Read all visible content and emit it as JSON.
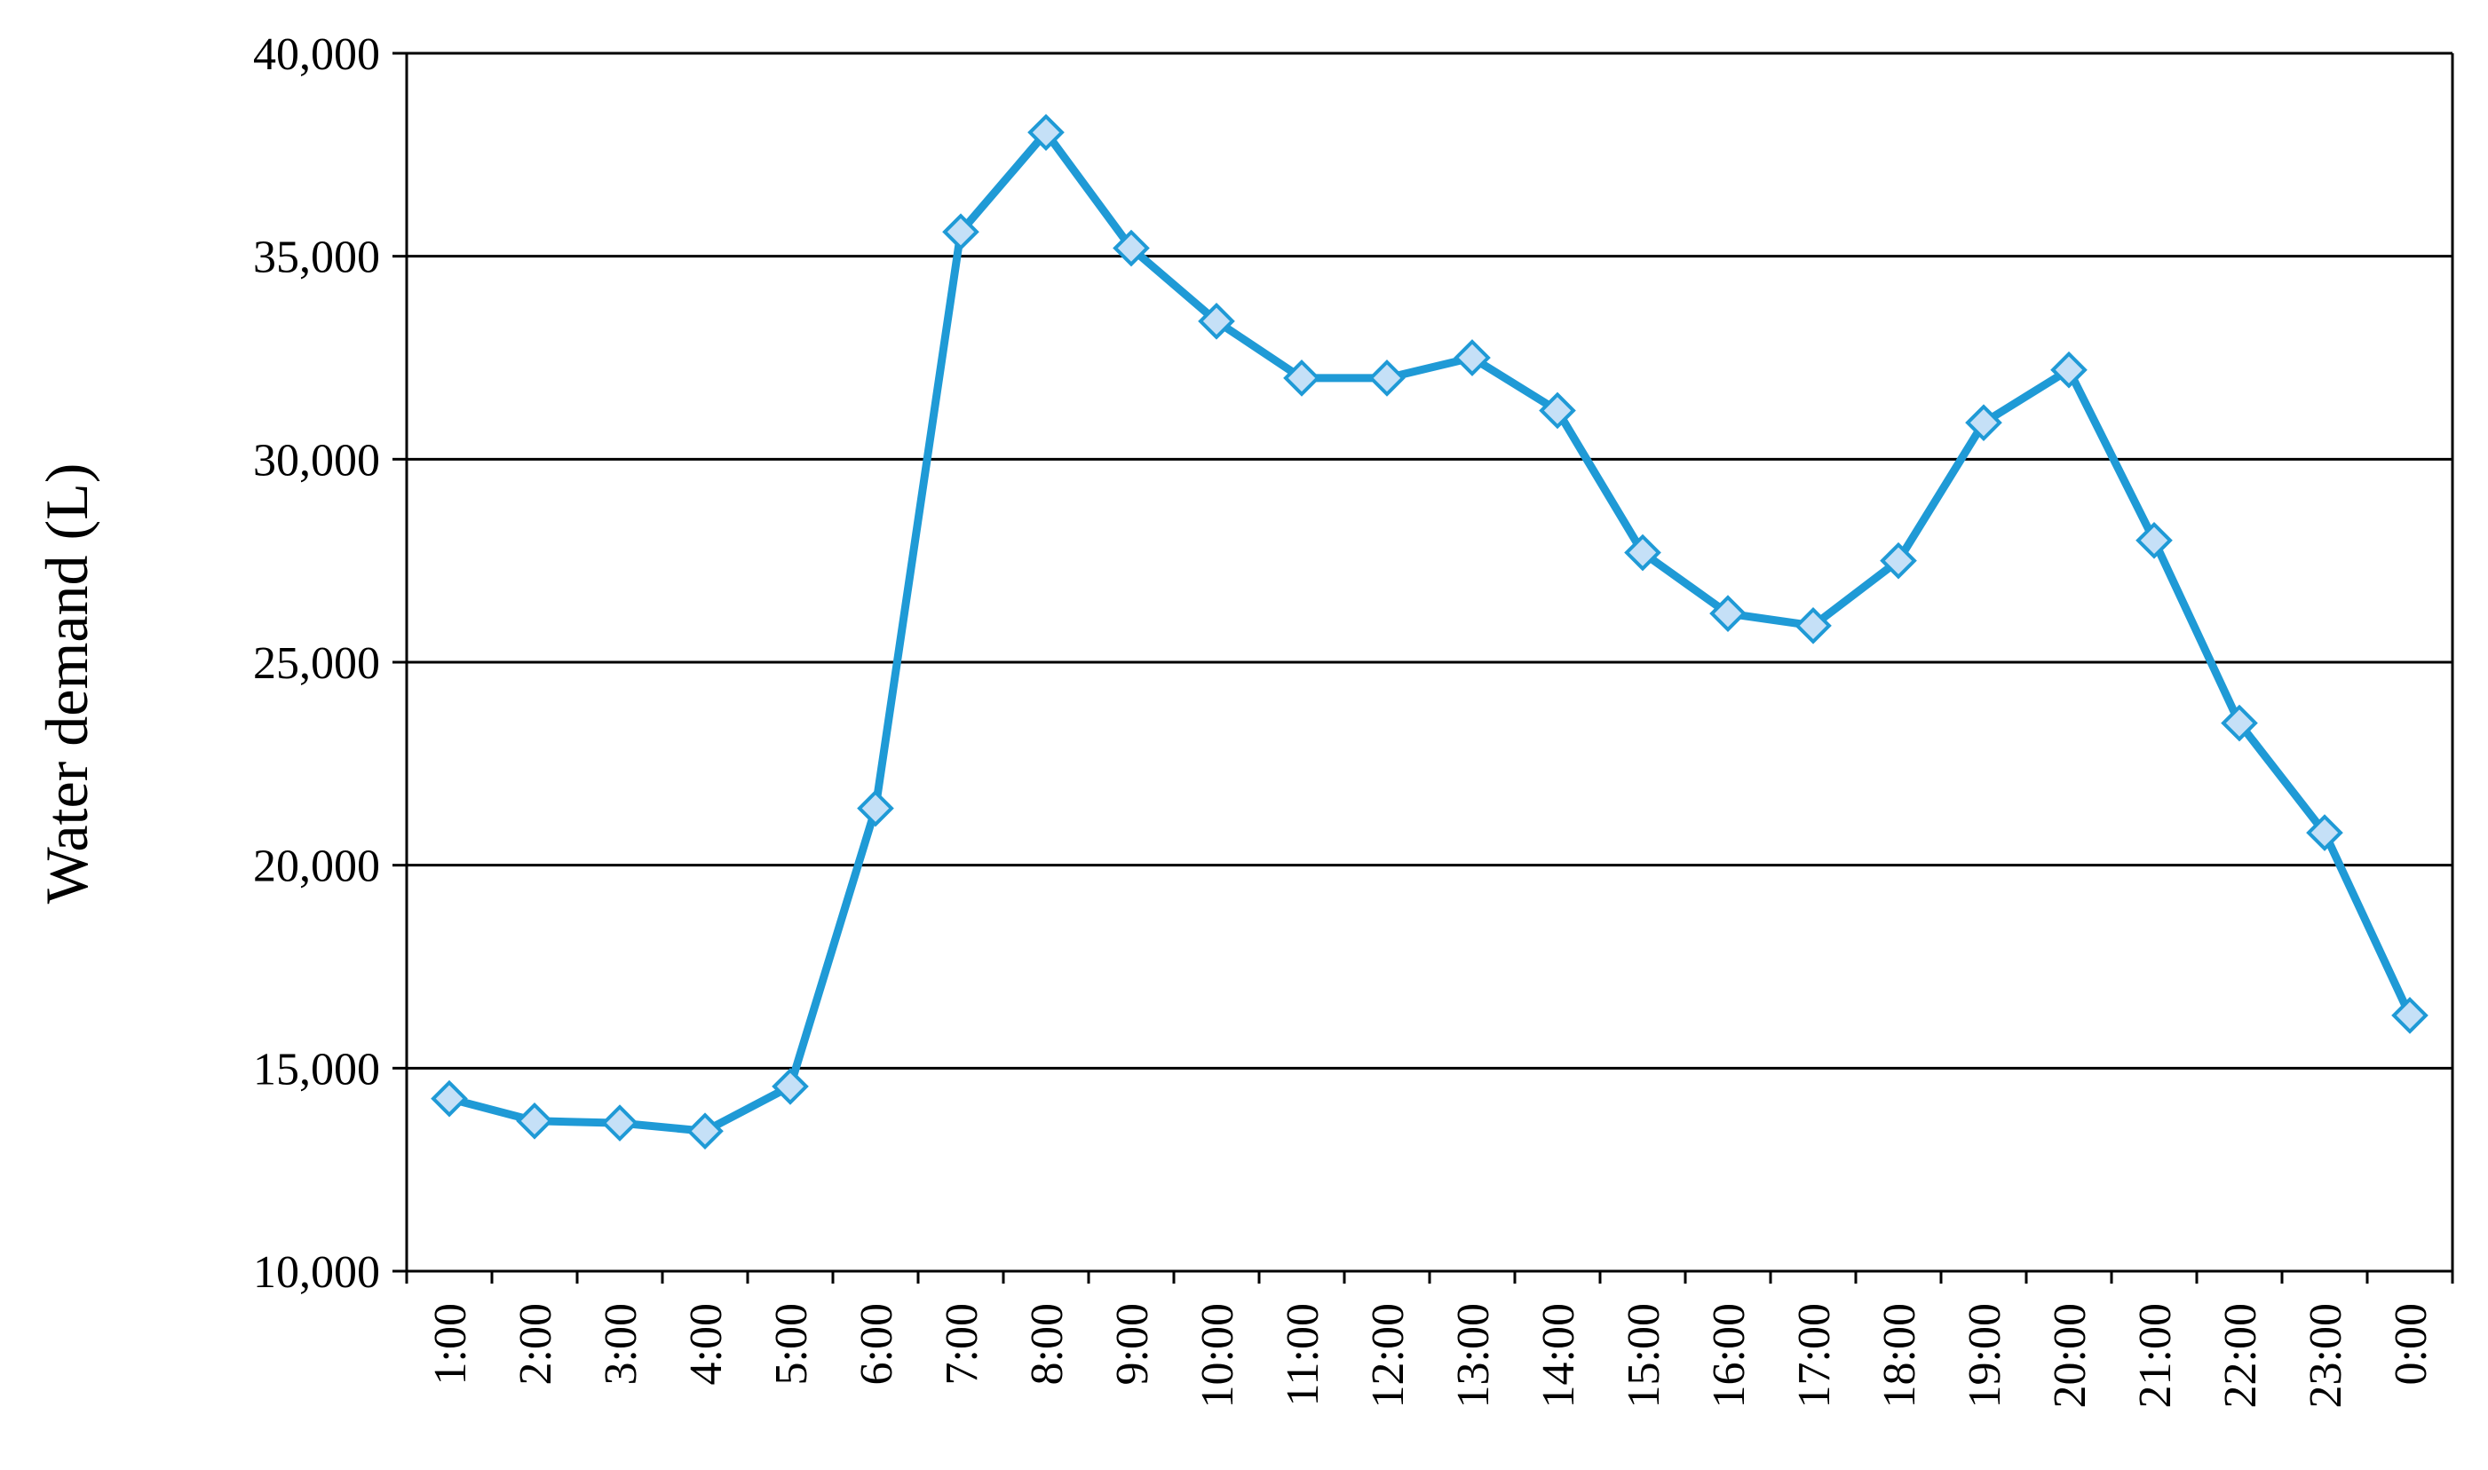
{
  "chart_data": {
    "type": "line",
    "title": "",
    "xlabel": "",
    "ylabel": "Water demand  (L)",
    "ylim": [
      10000,
      40000
    ],
    "yticks": [
      10000,
      15000,
      20000,
      25000,
      30000,
      35000,
      40000
    ],
    "ytick_labels": [
      "10,000",
      "15,000",
      "20,000",
      "25,000",
      "30,000",
      "35,000",
      "40,000"
    ],
    "grid": "horizontal",
    "legend": "none",
    "categories": [
      "1:00",
      "2:00",
      "3:00",
      "4:00",
      "5:00",
      "6:00",
      "7:00",
      "8:00",
      "9:00",
      "10:00",
      "11:00",
      "12:00",
      "13:00",
      "14:00",
      "15:00",
      "16:00",
      "17:00",
      "18:00",
      "19:00",
      "20:00",
      "21:00",
      "22:00",
      "23:00",
      "0:00"
    ],
    "series": [
      {
        "values": [
          14250,
          13700,
          13650,
          13450,
          14550,
          21400,
          35600,
          38050,
          35200,
          33400,
          32000,
          32000,
          32500,
          31200,
          27700,
          26200,
          25900,
          27500,
          30900,
          32200,
          28000,
          23500,
          20800,
          16300
        ],
        "color": "#1f9ad6",
        "marker": "diamond",
        "marker_fill": "#c5e0f7"
      }
    ]
  }
}
